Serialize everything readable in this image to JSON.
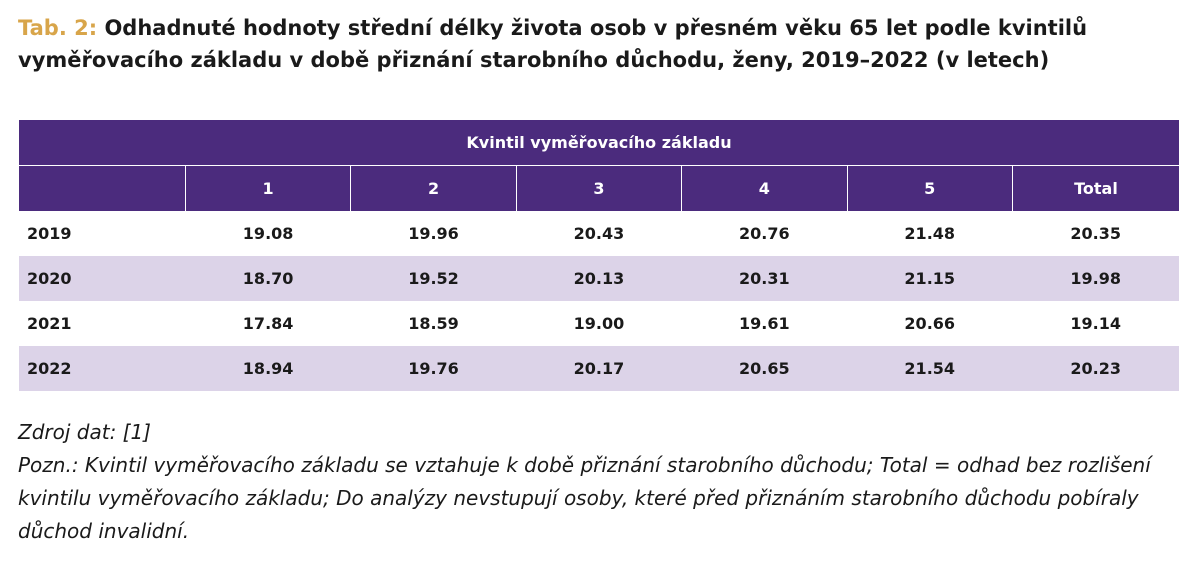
{
  "caption": {
    "label": "Tab. 2:",
    "text": "Odhadnuté hodnoty střední délky života osob v přesném věku 65 let podle kvintilů vyměřovacího základu v době přiznání starobního důchodu, ženy, 2019–2022 (v letech)"
  },
  "table": {
    "group_header": "Kvintil vyměřovacího základu",
    "columns": [
      "",
      "1",
      "2",
      "3",
      "4",
      "5",
      "Total"
    ],
    "rows": [
      {
        "year": "2019",
        "values": [
          "19.08",
          "19.96",
          "20.43",
          "20.76",
          "21.48",
          "20.35"
        ]
      },
      {
        "year": "2020",
        "values": [
          "18.70",
          "19.52",
          "20.13",
          "20.31",
          "21.15",
          "19.98"
        ]
      },
      {
        "year": "2021",
        "values": [
          "17.84",
          "18.59",
          "19.00",
          "19.61",
          "20.66",
          "19.14"
        ]
      },
      {
        "year": "2022",
        "values": [
          "18.94",
          "19.76",
          "20.17",
          "20.65",
          "21.54",
          "20.23"
        ]
      }
    ]
  },
  "notes": {
    "source": "Zdroj dat: [1]",
    "note": "Pozn.: Kvintil vyměřovacího základu se vztahuje k době přiznání starobního důchodu; Total = odhad bez rozlišení kvintilu vyměřovacího základu; Do analýzy nevstupují osoby, které před přiznáním starobního důchodu pobíraly důchod invalidní."
  },
  "colors": {
    "header_bg": "#4b2b7d",
    "header_text": "#ffffff",
    "alt_row_bg": "#dcd3e8",
    "label_accent": "#d8a54a"
  }
}
